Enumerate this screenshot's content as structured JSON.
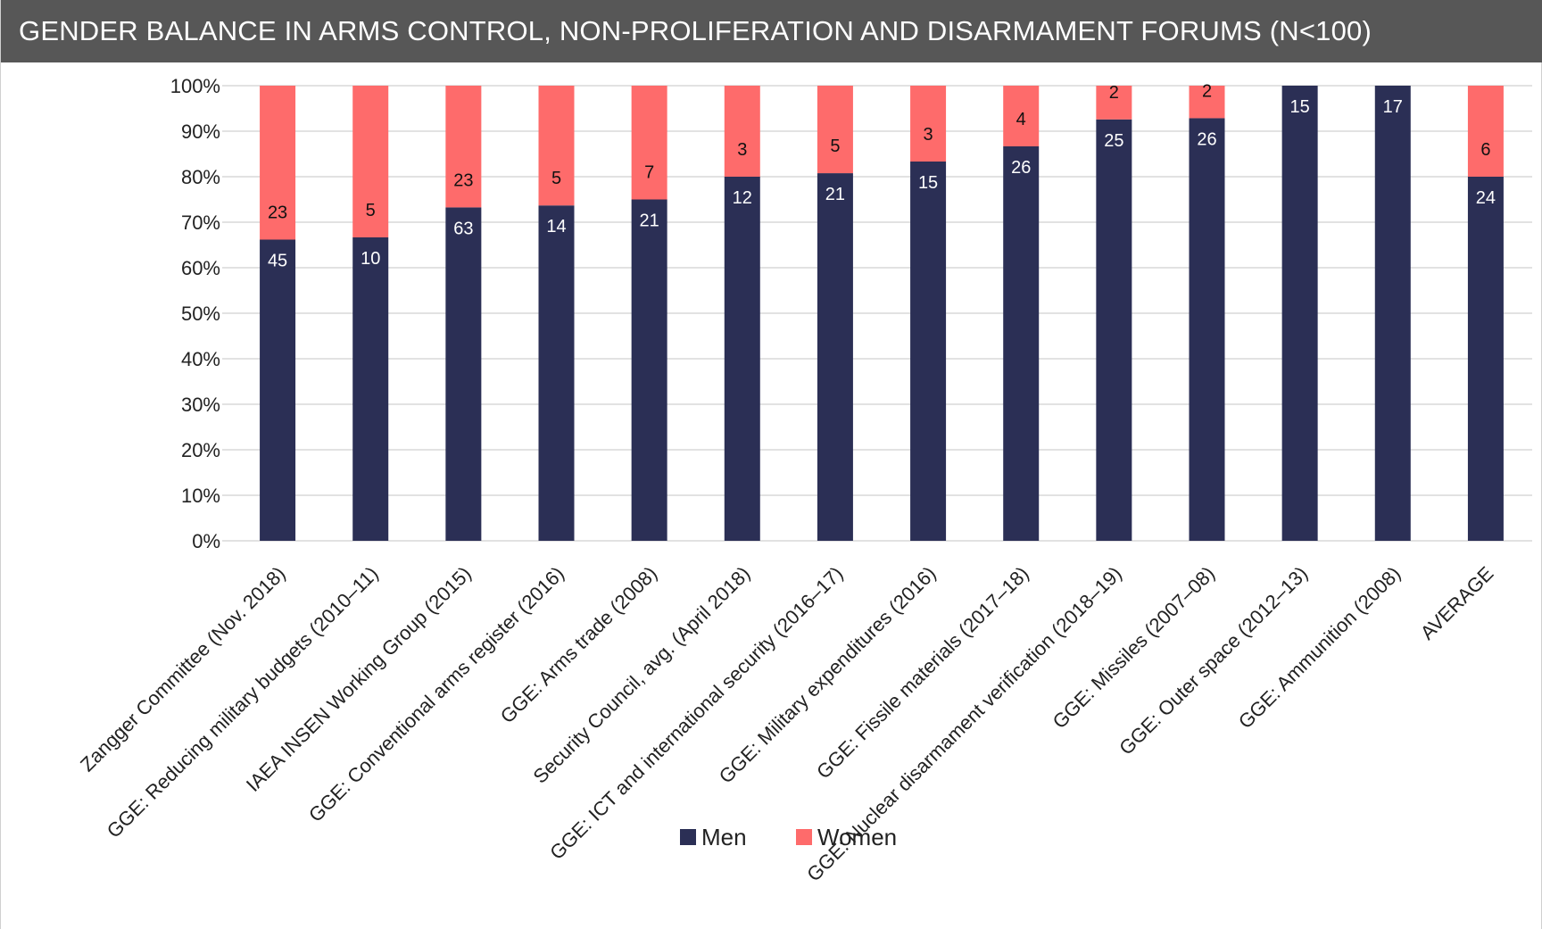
{
  "title": "GENDER BALANCE IN ARMS CONTROL, NON-PROLIFERATION AND DISARMAMENT FORUMS (N<100)",
  "colors": {
    "men": "#2b2f55",
    "women": "#fe6b6b",
    "grid": "#d9d9d9",
    "title_bg": "#575757"
  },
  "chart_data": {
    "type": "bar",
    "stacked": true,
    "normalized": true,
    "title": "GENDER BALANCE IN ARMS CONTROL, NON-PROLIFERATION AND DISARMAMENT FORUMS (N<100)",
    "categories": [
      "Zangger Committee (Nov. 2018)",
      "GGE: Reducing military budgets (2010–11)",
      "IAEA INSEN Working Group (2015)",
      "GGE: Conventional arms register (2016)",
      "GGE: Arms trade (2008)",
      "Security Council, avg. (April 2018)",
      "GGE: ICT and international security (2016–17)",
      "GGE: Military expenditures (2016)",
      "GGE: Fissile materials (2017–18)",
      "GGE: Nuclear disarmament verification (2018–19)",
      "GGE: Missiles (2007–08)",
      "GGE: Outer space (2012–13)",
      "GGE: Ammunition (2008)",
      "AVERAGE"
    ],
    "series": [
      {
        "name": "Men",
        "values": [
          45,
          10,
          63,
          14,
          21,
          12,
          21,
          15,
          26,
          25,
          26,
          15,
          17,
          24
        ],
        "labels": [
          "45",
          "10",
          "63",
          "14",
          "21",
          "12",
          "21",
          "15",
          "26",
          "25",
          "26",
          "15",
          "17",
          "24"
        ]
      },
      {
        "name": "Women",
        "values": [
          23,
          5,
          23,
          5,
          7,
          3,
          5,
          3,
          4,
          2,
          2,
          0,
          0,
          6
        ],
        "labels": [
          "23",
          "5",
          "23",
          "5",
          "7",
          "3",
          "5",
          "3",
          "4",
          "2",
          "2",
          "",
          "",
          "6"
        ]
      }
    ],
    "yticks": [
      "0%",
      "10%",
      "20%",
      "30%",
      "40%",
      "50%",
      "60%",
      "70%",
      "80%",
      "90%",
      "100%"
    ],
    "ylim": [
      0,
      100
    ],
    "grid": true,
    "legend": "bottom"
  }
}
